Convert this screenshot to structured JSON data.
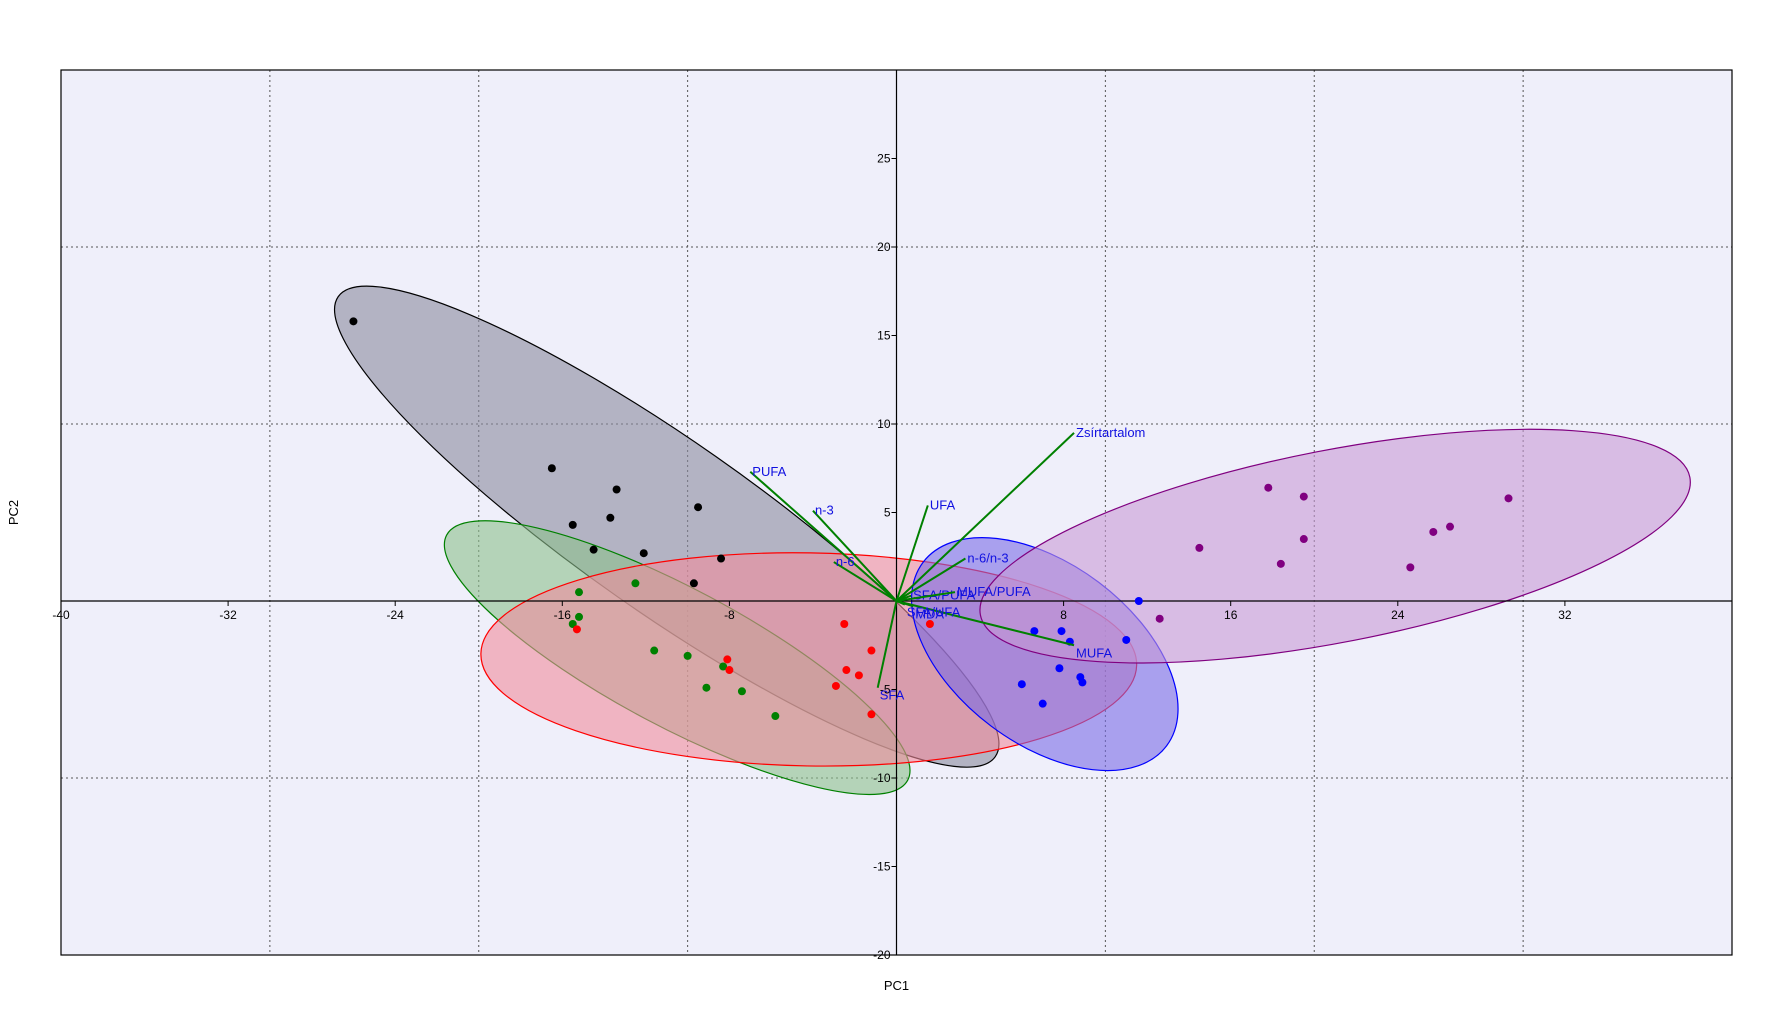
{
  "chart_data": {
    "type": "scatter",
    "subtype": "pca-biplot",
    "xlabel": "PC1",
    "ylabel": "PC2",
    "xlim": [
      -40,
      40
    ],
    "ylim": [
      -20,
      30
    ],
    "x_ticks": [
      -40,
      -32,
      -24,
      -16,
      -8,
      8,
      16,
      24,
      32
    ],
    "y_ticks": [
      -20,
      -15,
      -10,
      -5,
      5,
      10,
      15,
      20,
      25
    ],
    "x_gridlines": [
      -40,
      -30,
      -20,
      -10,
      10,
      20,
      30,
      40
    ],
    "y_gridlines": [
      -10,
      10,
      20
    ],
    "grid": true,
    "background_color": "#efeffa",
    "groups": [
      {
        "color": "#000000",
        "fill": "#8a8a9e",
        "points": [
          [
            -26,
            15.8
          ],
          [
            -16.5,
            7.5
          ],
          [
            -15.5,
            4.3
          ],
          [
            -14.5,
            2.9
          ],
          [
            -13.7,
            4.7
          ],
          [
            -13.4,
            6.3
          ],
          [
            -12.1,
            2.7
          ],
          [
            -9.5,
            5.3
          ],
          [
            -8.4,
            2.4
          ],
          [
            -9.7,
            1.0
          ]
        ],
        "ellipse": {
          "cx": -11,
          "cy": 4.2,
          "rx": 19.2,
          "ry": 4.1,
          "angle_deg": -35
        }
      },
      {
        "color": "#008000",
        "fill": "#8cc08c",
        "points": [
          [
            -15.2,
            0.5
          ],
          [
            -15.5,
            -1.3
          ],
          [
            -15.2,
            -0.9
          ],
          [
            -12.5,
            1.0
          ],
          [
            -11.6,
            -2.8
          ],
          [
            -10.0,
            -3.1
          ],
          [
            -8.3,
            -3.7
          ],
          [
            -9.1,
            -4.9
          ],
          [
            -7.4,
            -5.1
          ],
          [
            -5.8,
            -6.5
          ]
        ],
        "ellipse": {
          "cx": -10.5,
          "cy": -3.2,
          "rx": 12.5,
          "ry": 3.3,
          "angle_deg": -28
        }
      },
      {
        "color": "#ff0000",
        "fill": "#f08c9c",
        "points": [
          [
            -15.3,
            -1.6
          ],
          [
            -8.1,
            -3.3
          ],
          [
            -8.0,
            -3.9
          ],
          [
            -2.5,
            -1.3
          ],
          [
            -2.4,
            -3.9
          ],
          [
            -1.8,
            -4.2
          ],
          [
            -1.2,
            -2.8
          ],
          [
            -2.9,
            -4.8
          ],
          [
            -1.2,
            -6.4
          ],
          [
            1.6,
            -1.3
          ]
        ],
        "ellipse": {
          "cx": -4.2,
          "cy": -3.3,
          "rx": 15.7,
          "ry": 5.1,
          "angle_deg": -1
        }
      },
      {
        "color": "#0000ff",
        "fill": "#7a6ae6",
        "points": [
          [
            6.6,
            -1.7
          ],
          [
            7.9,
            -1.7
          ],
          [
            8.3,
            -2.3
          ],
          [
            7.8,
            -3.8
          ],
          [
            8.8,
            -4.3
          ],
          [
            8.9,
            -4.6
          ],
          [
            6.0,
            -4.7
          ],
          [
            7.0,
            -5.8
          ],
          [
            11.0,
            -2.2
          ],
          [
            11.6,
            0.0
          ]
        ],
        "ellipse": {
          "cx": 7.1,
          "cy": -3.0,
          "rx": 7.3,
          "ry": 4.3,
          "angle_deg": -37
        }
      },
      {
        "color": "#800080",
        "fill": "#c89ad6",
        "points": [
          [
            12.6,
            -1.0
          ],
          [
            14.5,
            3.0
          ],
          [
            17.8,
            6.4
          ],
          [
            18.4,
            2.1
          ],
          [
            19.5,
            5.9
          ],
          [
            19.5,
            3.5
          ],
          [
            24.6,
            1.9
          ],
          [
            25.7,
            3.9
          ],
          [
            26.5,
            4.2
          ],
          [
            29.3,
            5.8
          ]
        ],
        "ellipse": {
          "cx": 21,
          "cy": 3.1,
          "rx": 17.3,
          "ry": 4.6,
          "angle_deg": 11
        }
      }
    ],
    "loadings": [
      {
        "label": "Zsírtartalom",
        "x": 8.5,
        "y": 9.5
      },
      {
        "label": "PUFA",
        "x": -7.0,
        "y": 7.3
      },
      {
        "label": "n-3",
        "x": -4.0,
        "y": 5.1
      },
      {
        "label": "UFA",
        "x": 1.5,
        "y": 5.4
      },
      {
        "label": "n-6",
        "x": -3.0,
        "y": 2.2
      },
      {
        "label": "n-6/n-3",
        "x": 3.3,
        "y": 2.4
      },
      {
        "label": "SFA/PUFA",
        "x": 0.7,
        "y": 0.3
      },
      {
        "label": "MUFA/PUFA",
        "x": 2.8,
        "y": 0.5
      },
      {
        "label": "SFA",
        "x": -0.9,
        "y": -4.9
      },
      {
        "label": "MUFA",
        "x": 8.5,
        "y": -2.5
      },
      {
        "label": "SFA/UFA",
        "x": 0.4,
        "y": -0.2
      },
      {
        "label": "MDA",
        "x": 0.8,
        "y": -0.3
      }
    ],
    "loading_color": "#008000"
  }
}
